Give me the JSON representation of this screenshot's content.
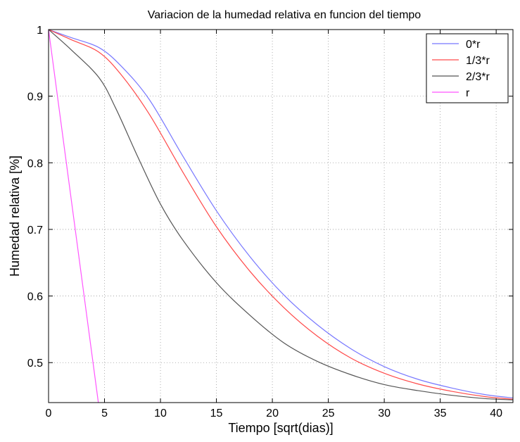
{
  "chart_data": {
    "type": "line",
    "title": "Variacion de la humedad relativa en funcion del tiempo",
    "xlabel": "Tiempo [sqrt(dias)]",
    "ylabel": "Humedad relativa [%]",
    "xlim": [
      0,
      41.5
    ],
    "ylim": [
      0.44,
      1.0
    ],
    "xticks": [
      0,
      5,
      10,
      15,
      20,
      25,
      30,
      35,
      40
    ],
    "yticks": [
      0.5,
      0.6,
      0.7,
      0.8,
      0.9,
      1
    ],
    "xtick_labels": [
      "0",
      "5",
      "10",
      "15",
      "20",
      "25",
      "30",
      "35",
      "40"
    ],
    "ytick_labels": [
      "0.5",
      "0.6",
      "0.7",
      "0.8",
      "0.9",
      "1"
    ],
    "grid": true,
    "legend_position": "top-right",
    "series": [
      {
        "name": "0*r",
        "color": "#7878ff",
        "x": [
          0,
          2,
          4.5,
          6.5,
          9,
          12,
          15,
          18,
          21,
          24,
          27,
          30,
          33,
          36,
          39,
          41.5
        ],
        "y": [
          1.0,
          0.988,
          0.973,
          0.945,
          0.895,
          0.81,
          0.728,
          0.659,
          0.602,
          0.557,
          0.521,
          0.494,
          0.475,
          0.462,
          0.452,
          0.447
        ]
      },
      {
        "name": "1/3*r",
        "color": "#ff4a4a",
        "x": [
          0,
          2,
          4.5,
          6.5,
          9,
          12,
          15,
          18,
          21,
          24,
          27,
          30,
          33,
          36,
          39,
          41.5
        ],
        "y": [
          1.0,
          0.985,
          0.966,
          0.932,
          0.873,
          0.786,
          0.704,
          0.637,
          0.583,
          0.54,
          0.507,
          0.484,
          0.468,
          0.457,
          0.449,
          0.445
        ]
      },
      {
        "name": "2/3*r",
        "color": "#555555",
        "x": [
          0,
          2,
          4.5,
          6,
          8,
          10,
          12,
          15,
          18,
          21,
          24,
          27,
          30,
          33,
          36,
          39,
          41.5
        ],
        "y": [
          1.0,
          0.97,
          0.928,
          0.882,
          0.808,
          0.738,
          0.684,
          0.62,
          0.571,
          0.53,
          0.502,
          0.482,
          0.467,
          0.458,
          0.451,
          0.446,
          0.444
        ]
      },
      {
        "name": "r",
        "color": "#ff55ff",
        "x": [
          0,
          4.45
        ],
        "y": [
          1.0,
          0.44
        ]
      }
    ]
  }
}
